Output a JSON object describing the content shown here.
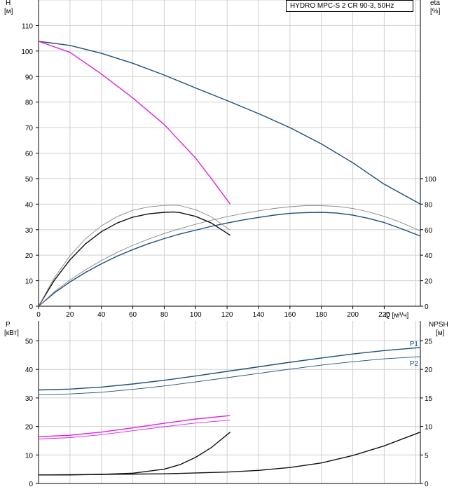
{
  "legend_text": "HYDRO MPC-S 2 CR 90-3, 50Hz",
  "chart_data": [
    {
      "id": "head-efficiency",
      "type": "line",
      "left_axis_label": [
        "H",
        "[м]"
      ],
      "right_axis_label": [
        "eta",
        "[%]"
      ],
      "xlabel": "Q [м³/ч]",
      "x_ticks": [
        0,
        20,
        40,
        60,
        80,
        100,
        120,
        140,
        160,
        180,
        200,
        220
      ],
      "y_ticks": [
        0,
        10,
        20,
        30,
        40,
        50,
        60,
        70,
        80,
        90,
        100,
        110
      ],
      "y2_ticks": [
        0,
        20,
        40,
        60,
        80,
        100
      ],
      "xlim": [
        0,
        243
      ],
      "ylim": [
        0,
        120
      ],
      "y2lim": [
        0,
        240
      ],
      "grid": true,
      "series": [
        {
          "axis": "left",
          "color": "#1f4e79",
          "width": 1.4,
          "x": [
            0,
            20,
            40,
            60,
            80,
            100,
            120,
            140,
            160,
            180,
            200,
            220,
            243
          ],
          "y": [
            103.8,
            102.2,
            99.1,
            95.2,
            90.6,
            85.5,
            80.6,
            75.5,
            70,
            63.6,
            56.2,
            47.8,
            40
          ]
        },
        {
          "axis": "left",
          "color": "#e020e0",
          "width": 1.4,
          "x": [
            0,
            20,
            40,
            60,
            80,
            100,
            110,
            122
          ],
          "y": [
            103.8,
            99.5,
            91,
            81.6,
            71.2,
            58,
            50,
            40
          ]
        },
        {
          "axis": "left",
          "color": "#1f4e79",
          "width": 1.4,
          "x": [
            0,
            10,
            20,
            30,
            40,
            50,
            60,
            70,
            80,
            90,
            100,
            110,
            120,
            130,
            140,
            150,
            160,
            170,
            180,
            190,
            200,
            210,
            220,
            230,
            243
          ],
          "y": [
            0,
            5.2,
            9.5,
            13.3,
            16.6,
            19.6,
            22.2,
            24.5,
            26.5,
            28.3,
            29.8,
            31.3,
            32.6,
            33.8,
            34.8,
            35.7,
            36.4,
            36.7,
            36.8,
            36.5,
            35.7,
            34.4,
            32.8,
            30.6,
            27.5
          ]
        },
        {
          "axis": "left",
          "color": "#888888",
          "width": 0.9,
          "x": [
            0,
            10,
            20,
            30,
            40,
            50,
            60,
            70,
            80,
            90,
            100,
            110,
            120,
            130,
            140,
            150,
            160,
            170,
            180,
            190,
            200,
            210,
            220,
            230,
            243
          ],
          "y": [
            0,
            5.6,
            10.3,
            14.3,
            17.9,
            21.1,
            23.9,
            26.3,
            28.5,
            30.4,
            32.1,
            33.7,
            35.1,
            36.3,
            37.4,
            38.3,
            39,
            39.4,
            39.4,
            39.1,
            38.3,
            37,
            35.2,
            33,
            29.5
          ]
        },
        {
          "axis": "left",
          "color": "#111111",
          "width": 1.4,
          "x": [
            0,
            10,
            20,
            30,
            40,
            50,
            60,
            70,
            80,
            86,
            90,
            100,
            110,
            122
          ],
          "y": [
            0,
            10.1,
            18.2,
            24.5,
            29.2,
            32.6,
            34.9,
            36.2,
            36.8,
            36.9,
            36.7,
            35.2,
            32.6,
            27.8
          ]
        },
        {
          "axis": "left",
          "color": "#888888",
          "width": 0.9,
          "x": [
            0,
            10,
            20,
            30,
            40,
            50,
            60,
            70,
            80,
            86,
            90,
            100,
            110,
            122
          ],
          "y": [
            0,
            11.1,
            19.8,
            26.5,
            31.5,
            35.1,
            37.6,
            38.9,
            39.5,
            39.6,
            39.4,
            37.8,
            35,
            29.8
          ]
        }
      ]
    },
    {
      "id": "power-npsh",
      "type": "line",
      "left_axis_label": [
        "P",
        "[кВт]"
      ],
      "right_axis_label": [
        "NPSH",
        "[м]"
      ],
      "y_ticks": [
        0,
        10,
        20,
        30,
        40,
        50
      ],
      "y2_ticks": [
        0,
        5,
        10,
        15,
        20,
        25
      ],
      "xlim": [
        0,
        243
      ],
      "ylim": [
        0,
        57
      ],
      "y2lim": [
        0,
        28.5
      ],
      "grid": true,
      "series": [
        {
          "name": "P1",
          "axis": "left",
          "color": "#1f4e79",
          "width": 1.4,
          "x": [
            0,
            20,
            40,
            60,
            80,
            100,
            120,
            140,
            160,
            180,
            200,
            220,
            243
          ],
          "y": [
            32.8,
            33.1,
            33.8,
            34.9,
            36.2,
            37.7,
            39.3,
            40.9,
            42.5,
            44,
            45.4,
            46.6,
            47.7
          ]
        },
        {
          "name": "P2",
          "axis": "left",
          "color": "#1f4e79",
          "width": 0.9,
          "x": [
            0,
            20,
            40,
            60,
            80,
            100,
            120,
            140,
            160,
            180,
            200,
            220,
            243
          ],
          "y": [
            31.1,
            31.4,
            32,
            33,
            34.2,
            35.6,
            37.1,
            38.6,
            40.1,
            41.5,
            42.7,
            43.7,
            44.5
          ]
        },
        {
          "axis": "left",
          "color": "#e020e0",
          "width": 1.4,
          "x": [
            0,
            20,
            40,
            60,
            80,
            100,
            122
          ],
          "y": [
            16.4,
            16.9,
            18,
            19.5,
            21.1,
            22.6,
            23.8
          ]
        },
        {
          "axis": "left",
          "color": "#e020e0",
          "width": 0.9,
          "x": [
            0,
            20,
            40,
            60,
            80,
            100,
            122
          ],
          "y": [
            15.6,
            16.1,
            17.1,
            18.5,
            19.9,
            21.2,
            22.2
          ]
        },
        {
          "axis": "right",
          "color": "#111111",
          "width": 1.4,
          "x": [
            0,
            20,
            40,
            60,
            80,
            90,
            100,
            110,
            122
          ],
          "y": [
            1.5,
            1.5,
            1.6,
            1.8,
            2.5,
            3.3,
            4.6,
            6.3,
            9
          ]
        },
        {
          "axis": "right",
          "color": "#111111",
          "width": 1.4,
          "x": [
            0,
            40,
            80,
            120,
            140,
            160,
            180,
            200,
            220,
            243
          ],
          "y": [
            1.5,
            1.6,
            1.7,
            2,
            2.3,
            2.8,
            3.6,
            4.9,
            6.6,
            9
          ]
        }
      ]
    }
  ]
}
